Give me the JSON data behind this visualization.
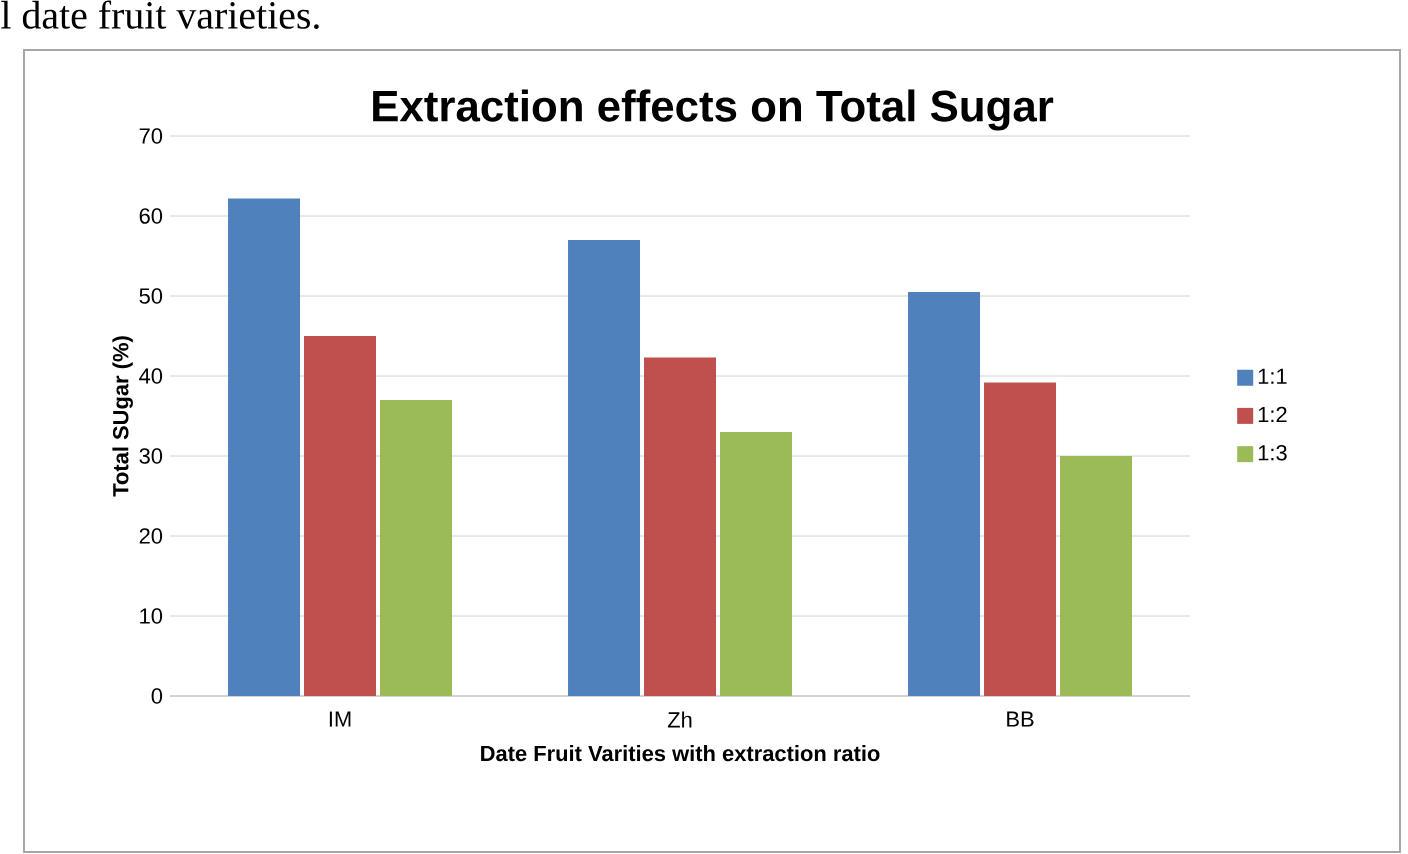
{
  "chart_data": {
    "type": "bar",
    "title": "Extraction effects on Total Sugar",
    "xlabel": "Date Fruit Varities with extraction ratio",
    "ylabel": "Total SUgar (%)",
    "annotations": [
      "l date fruit varieties."
    ],
    "categories": [
      "IM",
      "Zh",
      "BB"
    ],
    "series": [
      {
        "name": "1:1",
        "color": "#4f81bd",
        "values": [
          62.2,
          57,
          50.5
        ]
      },
      {
        "name": "1:2",
        "color": "#c0504d",
        "values": [
          45,
          42.3,
          39.2
        ]
      },
      {
        "name": "1:3",
        "color": "#9bbb59",
        "values": [
          37,
          33,
          30
        ]
      }
    ],
    "ylim": [
      0,
      70
    ],
    "yticks": [
      0,
      10,
      20,
      30,
      40,
      50,
      60,
      70
    ],
    "grid": "y",
    "legend": "right"
  }
}
